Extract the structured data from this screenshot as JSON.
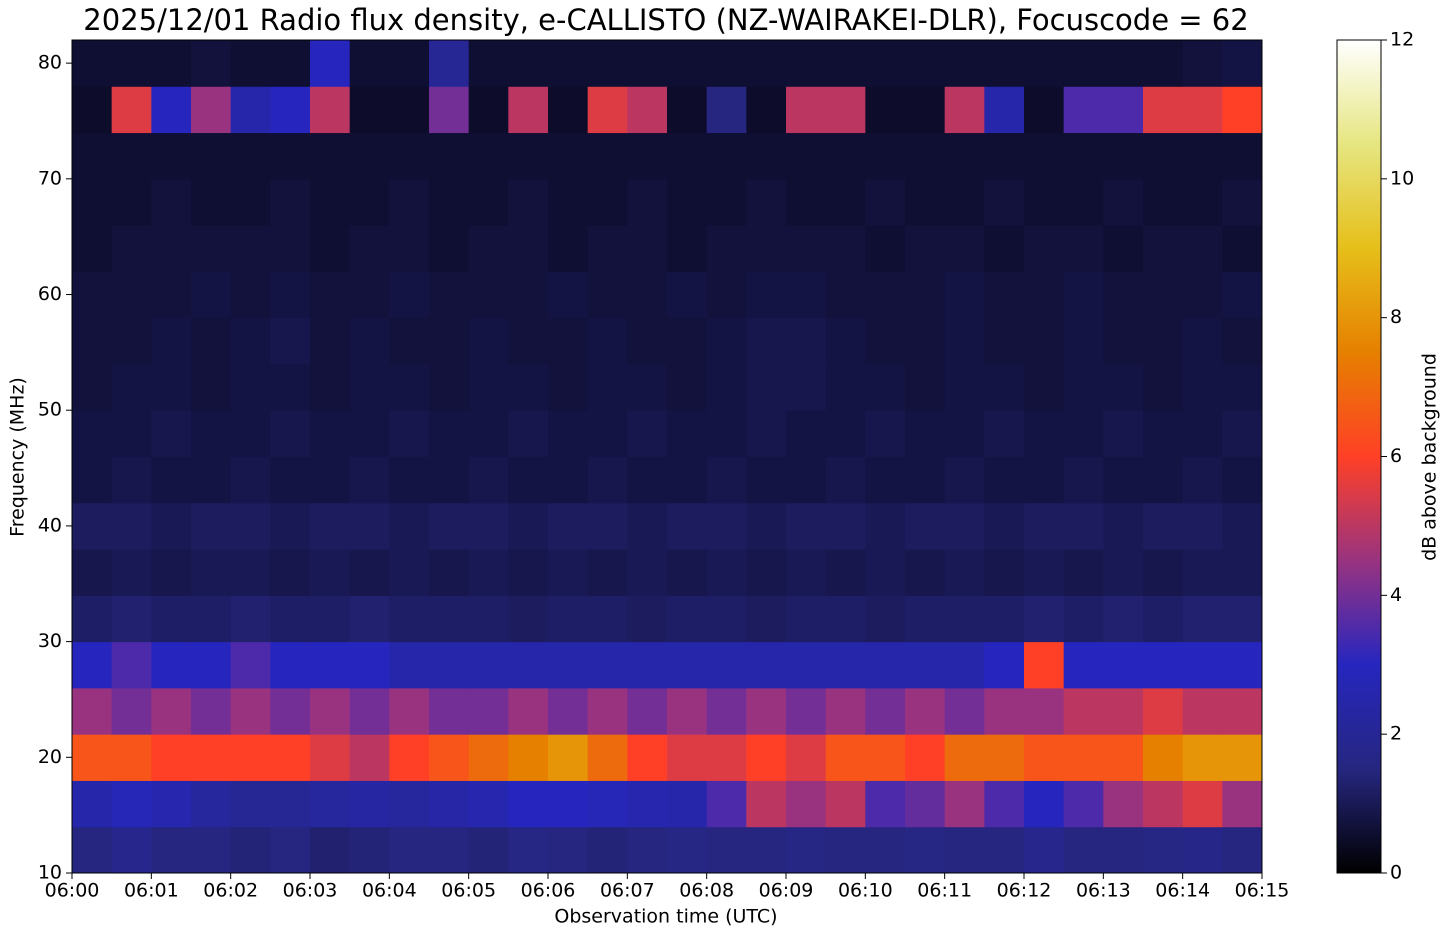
{
  "chart_data": {
    "type": "heatmap",
    "title": "2025/12/01 Radio flux density, e-CALLISTO (NZ-WAIRAKEI-DLR), Focuscode = 62",
    "xlabel": "Observation time (UTC)",
    "ylabel": "Frequency (MHz)",
    "xlim": [
      "06:00",
      "06:15"
    ],
    "xticks": [
      "06:00",
      "06:01",
      "06:02",
      "06:03",
      "06:04",
      "06:05",
      "06:06",
      "06:07",
      "06:08",
      "06:09",
      "06:10",
      "06:11",
      "06:12",
      "06:13",
      "06:14",
      "06:15"
    ],
    "ylim": [
      10,
      82
    ],
    "yticks": [
      10,
      20,
      30,
      40,
      50,
      60,
      70,
      80
    ],
    "y_bins": [
      10,
      14,
      18,
      22,
      26,
      30,
      34,
      38,
      42,
      46,
      50,
      54,
      58,
      62,
      66,
      70,
      74,
      78,
      82
    ],
    "z": [
      [
        1.5,
        1.8,
        1.5,
        1.5,
        1.4,
        1.5,
        1.3,
        1.4,
        1.5,
        1.5,
        1.4,
        1.6,
        1.5,
        1.4,
        1.5,
        1.6,
        1.5,
        1.5,
        1.6,
        1.5,
        1.5,
        1.6,
        1.5,
        1.5,
        1.8,
        1.5,
        1.5,
        1.6,
        1.7,
        1.5
      ],
      [
        2.5,
        2.8,
        2.6,
        2.2,
        2.0,
        2.0,
        2.2,
        2.3,
        2.2,
        2.4,
        2.6,
        3.0,
        3.0,
        2.8,
        2.6,
        2.5,
        3.5,
        5.0,
        4.5,
        5.0,
        3.5,
        3.8,
        4.5,
        3.5,
        3.0,
        3.5,
        4.5,
        5.0,
        5.5,
        4.5
      ],
      [
        6.5,
        6.5,
        6.0,
        6.0,
        6.0,
        6.0,
        5.5,
        5.0,
        6.0,
        6.5,
        7.0,
        7.5,
        8.0,
        7.0,
        6.0,
        5.5,
        5.5,
        6.0,
        5.5,
        6.5,
        6.5,
        6.0,
        7.0,
        7.0,
        6.5,
        6.5,
        6.5,
        7.5,
        8.0,
        8.0
      ],
      [
        4.5,
        4.0,
        4.5,
        4.0,
        4.5,
        4.0,
        4.5,
        4.0,
        4.5,
        4.0,
        4.0,
        4.5,
        4.0,
        4.5,
        4.0,
        4.5,
        4.0,
        4.5,
        4.0,
        4.5,
        4.0,
        4.5,
        4.0,
        4.5,
        4.5,
        5.0,
        5.0,
        5.5,
        5.0,
        5.0
      ],
      [
        3.0,
        3.5,
        3.0,
        3.0,
        3.5,
        3.0,
        3.0,
        3.0,
        2.5,
        2.5,
        2.5,
        2.5,
        2.5,
        2.5,
        2.5,
        2.5,
        2.5,
        2.5,
        2.5,
        2.5,
        2.5,
        2.5,
        2.5,
        3.0,
        6.0,
        3.0,
        3.0,
        3.0,
        3.0,
        3.0
      ],
      [
        1.2,
        1.3,
        1.2,
        1.2,
        1.3,
        1.2,
        1.2,
        1.3,
        1.2,
        1.2,
        1.2,
        1.1,
        1.2,
        1.2,
        1.1,
        1.2,
        1.2,
        1.1,
        1.2,
        1.2,
        1.1,
        1.2,
        1.2,
        1.2,
        1.3,
        1.2,
        1.3,
        1.2,
        1.3,
        1.3
      ],
      [
        0.9,
        1.0,
        0.9,
        1.0,
        1.0,
        0.9,
        1.0,
        0.9,
        1.0,
        0.9,
        1.0,
        0.9,
        1.0,
        0.9,
        1.0,
        0.9,
        1.0,
        0.9,
        1.0,
        0.9,
        1.0,
        0.9,
        1.0,
        0.9,
        1.0,
        0.9,
        1.0,
        0.9,
        1.0,
        1.0
      ],
      [
        1.1,
        1.1,
        1.0,
        1.1,
        1.1,
        1.0,
        1.1,
        1.1,
        1.0,
        1.1,
        1.1,
        1.0,
        1.1,
        1.1,
        1.0,
        1.1,
        1.1,
        1.0,
        1.1,
        1.1,
        1.0,
        1.1,
        1.1,
        1.0,
        1.1,
        1.1,
        1.0,
        1.1,
        1.1,
        1.0
      ],
      [
        0.8,
        0.9,
        0.8,
        0.8,
        0.9,
        0.8,
        0.8,
        0.9,
        0.8,
        0.8,
        0.9,
        0.8,
        0.8,
        0.9,
        0.8,
        0.8,
        0.9,
        0.8,
        0.8,
        0.9,
        0.8,
        0.8,
        0.9,
        0.8,
        0.8,
        0.9,
        0.8,
        0.8,
        0.9,
        0.8
      ],
      [
        0.8,
        0.8,
        0.9,
        0.8,
        0.8,
        0.9,
        0.8,
        0.8,
        0.9,
        0.8,
        0.8,
        0.9,
        0.8,
        0.8,
        0.9,
        0.8,
        0.8,
        0.9,
        0.8,
        0.8,
        0.9,
        0.8,
        0.8,
        0.9,
        0.8,
        0.8,
        0.9,
        0.8,
        0.8,
        0.9
      ],
      [
        0.7,
        0.8,
        0.8,
        0.7,
        0.8,
        0.8,
        0.7,
        0.8,
        0.8,
        0.7,
        0.8,
        0.8,
        0.7,
        0.8,
        0.8,
        0.7,
        0.8,
        0.9,
        0.9,
        0.8,
        0.8,
        0.7,
        0.8,
        0.8,
        0.7,
        0.8,
        0.8,
        0.7,
        0.8,
        0.8
      ],
      [
        0.7,
        0.7,
        0.8,
        0.7,
        0.8,
        0.9,
        0.7,
        0.8,
        0.7,
        0.7,
        0.8,
        0.7,
        0.7,
        0.8,
        0.7,
        0.7,
        0.8,
        0.9,
        0.9,
        0.8,
        0.7,
        0.7,
        0.8,
        0.7,
        0.7,
        0.8,
        0.7,
        0.7,
        0.8,
        0.7
      ],
      [
        0.7,
        0.7,
        0.7,
        0.8,
        0.7,
        0.8,
        0.7,
        0.7,
        0.8,
        0.7,
        0.7,
        0.7,
        0.8,
        0.7,
        0.7,
        0.8,
        0.7,
        0.8,
        0.8,
        0.7,
        0.7,
        0.7,
        0.8,
        0.7,
        0.7,
        0.8,
        0.7,
        0.7,
        0.7,
        0.8
      ],
      [
        0.6,
        0.7,
        0.7,
        0.7,
        0.7,
        0.7,
        0.6,
        0.7,
        0.7,
        0.6,
        0.7,
        0.7,
        0.6,
        0.7,
        0.7,
        0.6,
        0.7,
        0.7,
        0.7,
        0.7,
        0.6,
        0.7,
        0.7,
        0.6,
        0.7,
        0.7,
        0.6,
        0.7,
        0.7,
        0.6
      ],
      [
        0.6,
        0.6,
        0.7,
        0.6,
        0.6,
        0.7,
        0.6,
        0.6,
        0.7,
        0.6,
        0.6,
        0.7,
        0.6,
        0.6,
        0.7,
        0.6,
        0.6,
        0.7,
        0.6,
        0.6,
        0.7,
        0.6,
        0.6,
        0.7,
        0.6,
        0.6,
        0.7,
        0.6,
        0.6,
        0.7
      ],
      [
        0.6,
        0.6,
        0.6,
        0.6,
        0.6,
        0.6,
        0.6,
        0.6,
        0.6,
        0.6,
        0.6,
        0.6,
        0.6,
        0.6,
        0.6,
        0.6,
        0.6,
        0.6,
        0.6,
        0.6,
        0.6,
        0.6,
        0.6,
        0.6,
        0.6,
        0.6,
        0.6,
        0.6,
        0.6,
        0.6
      ],
      [
        0.5,
        5.5,
        3.0,
        4.5,
        2.5,
        3.0,
        5.0,
        0.5,
        0.5,
        4.0,
        0.5,
        5.0,
        0.5,
        5.5,
        5.0,
        0.5,
        1.5,
        0.5,
        5.0,
        5.0,
        0.5,
        0.5,
        5.0,
        2.5,
        0.5,
        3.5,
        3.5,
        5.5,
        5.5,
        6.0
      ],
      [
        0.6,
        0.6,
        0.6,
        0.7,
        0.6,
        0.6,
        3.0,
        0.6,
        0.6,
        2.0,
        0.6,
        0.6,
        0.6,
        0.6,
        0.6,
        0.6,
        0.6,
        0.6,
        0.6,
        0.6,
        0.6,
        0.6,
        0.6,
        0.6,
        0.6,
        0.6,
        0.6,
        0.6,
        0.7,
        0.8
      ]
    ],
    "colormap": [
      "#000000",
      "#262680",
      "#2626bf",
      "#993380",
      "#ff4026",
      "#e68000",
      "#e6bf1a",
      "#e6e680",
      "#ffffff"
    ],
    "colorbar_label": "dB above background",
    "clim": [
      0,
      12
    ],
    "cticks": [
      0,
      2,
      4,
      6,
      8,
      10,
      12
    ]
  }
}
